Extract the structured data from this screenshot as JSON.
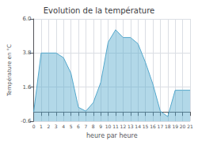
{
  "chart_data": {
    "type": "area",
    "title": "Evolution de la température",
    "xlabel": "heure par heure",
    "ylabel": "Température en °C",
    "x": [
      0,
      1,
      2,
      3,
      4,
      5,
      6,
      7,
      8,
      9,
      10,
      11,
      12,
      13,
      14,
      15,
      16,
      17,
      18,
      19,
      20,
      21
    ],
    "values": [
      0.0,
      3.8,
      3.8,
      3.8,
      3.5,
      2.5,
      0.3,
      0.05,
      0.6,
      1.9,
      4.5,
      5.3,
      4.8,
      4.8,
      4.4,
      3.2,
      1.8,
      0.05,
      -0.3,
      1.4,
      1.4,
      1.4
    ],
    "color": "#55a8cc",
    "xlim": [
      0,
      21
    ],
    "xticks": [
      0,
      1,
      2,
      3,
      4,
      5,
      6,
      7,
      8,
      9,
      10,
      11,
      12,
      13,
      14,
      15,
      16,
      17,
      18,
      19,
      20,
      21
    ],
    "ylim": [
      -0.6,
      6.0
    ],
    "yticks": [
      -0.6,
      1.6,
      3.8,
      {
        "value": 6.0,
        "label": "6.0"
      }
    ],
    "grid": true
  }
}
